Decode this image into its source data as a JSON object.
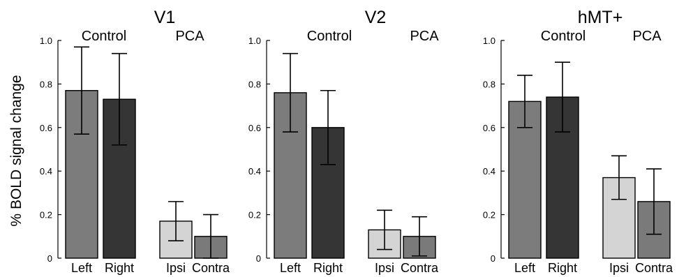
{
  "ylabel": "% BOLD  signal change",
  "ylim": [
    0,
    1.0
  ],
  "yticks": [
    "0",
    "0.2",
    "0.4",
    "0.6",
    "0.8",
    "1.0"
  ],
  "group_labels": [
    "Control",
    "PCA"
  ],
  "categories": [
    "Left",
    "Right",
    "Ipsi",
    "Contra"
  ],
  "colors": {
    "Left": "#7c7c7c",
    "Right": "#353535",
    "Ipsi": "#d4d4d4",
    "Contra": "#7a7a7a"
  },
  "chart_data": [
    {
      "type": "bar",
      "title": "V1",
      "categories": [
        "Left",
        "Right",
        "Ipsi",
        "Contra"
      ],
      "values": [
        0.77,
        0.73,
        0.17,
        0.1
      ],
      "error_low": [
        0.57,
        0.52,
        0.08,
        0.0
      ],
      "error_high": [
        0.97,
        0.94,
        0.26,
        0.2
      ],
      "ylim": [
        0,
        1.0
      ]
    },
    {
      "type": "bar",
      "title": "V2",
      "categories": [
        "Left",
        "Right",
        "Ipsi",
        "Contra"
      ],
      "values": [
        0.76,
        0.6,
        0.13,
        0.1
      ],
      "error_low": [
        0.58,
        0.43,
        0.04,
        0.01
      ],
      "error_high": [
        0.94,
        0.77,
        0.22,
        0.19
      ],
      "ylim": [
        0,
        1.0
      ]
    },
    {
      "type": "bar",
      "title": "hMT+",
      "categories": [
        "Left",
        "Right",
        "Ipsi",
        "Contra"
      ],
      "values": [
        0.72,
        0.74,
        0.37,
        0.26
      ],
      "error_low": [
        0.6,
        0.58,
        0.27,
        0.11
      ],
      "error_high": [
        0.84,
        0.9,
        0.47,
        0.41
      ],
      "ylim": [
        0,
        1.0
      ]
    }
  ]
}
